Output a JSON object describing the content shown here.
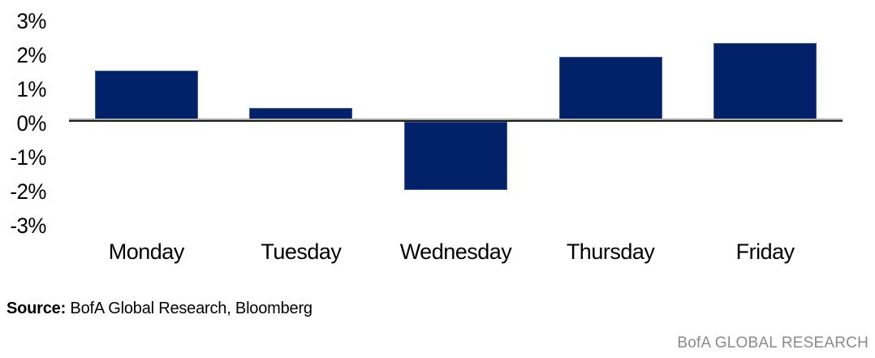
{
  "chart_data": {
    "type": "bar",
    "categories": [
      "Monday",
      "Tuesday",
      "Wednesday",
      "Thursday",
      "Friday"
    ],
    "values": [
      1.5,
      0.4,
      -2.0,
      1.9,
      2.3
    ],
    "unit": "%",
    "title": "",
    "xlabel": "",
    "ylabel": "",
    "ylim": [
      -3,
      3
    ],
    "ytick_labels": [
      "3%",
      "2%",
      "1%",
      "0%",
      "-1%",
      "-2%",
      "-3%"
    ],
    "ytick_values": [
      3,
      2,
      1,
      0,
      -1,
      -2,
      -3
    ],
    "grid": false,
    "legend": null,
    "bar_color": "#012169",
    "bar_edge_color": "#546eaa",
    "axis_line_colors": [
      "#a8a8a8",
      "#1c1c1c"
    ],
    "text_color": "#000000"
  },
  "source": {
    "label": "Source:",
    "text": " BofA Global Research, Bloomberg"
  },
  "footer": {
    "brand": "BofA GLOBAL RESEARCH",
    "brand_color": "#8a8a8a"
  }
}
